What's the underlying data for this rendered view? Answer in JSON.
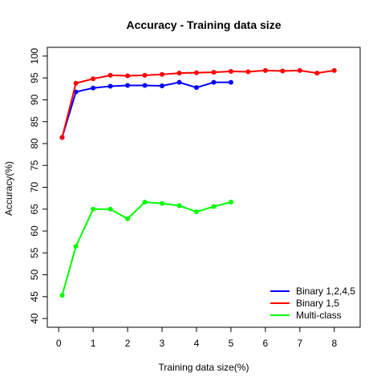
{
  "chart_data": {
    "type": "line",
    "title": "Accuracy - Training data size",
    "xlabel": "Training data size(%)",
    "ylabel": "Accuracy(%)",
    "xlim": [
      -0.33,
      8.75
    ],
    "ylim": [
      38,
      102
    ],
    "xticks": [
      0,
      1,
      2,
      3,
      4,
      5,
      6,
      7,
      8
    ],
    "yticks": [
      40,
      45,
      50,
      55,
      60,
      65,
      70,
      75,
      80,
      85,
      90,
      95,
      100
    ],
    "grid": false,
    "legend_position": "bottom-right",
    "series": [
      {
        "name": "Binary 1,2,4,5",
        "color": "#0000ff",
        "x": [
          0.1,
          0.5,
          1,
          1.5,
          2,
          2.5,
          3,
          3.5,
          4,
          4.5,
          5
        ],
        "y": [
          81.4,
          91.8,
          92.7,
          93.1,
          93.3,
          93.3,
          93.2,
          94.0,
          92.8,
          94.0,
          94.0
        ]
      },
      {
        "name": "Binary 1,5",
        "color": "#ff0000",
        "x": [
          0.1,
          0.5,
          1,
          1.5,
          2,
          2.5,
          3,
          3.5,
          4,
          4.5,
          5,
          5.5,
          6,
          6.5,
          7,
          7.5,
          8
        ],
        "y": [
          81.4,
          93.8,
          94.8,
          95.6,
          95.5,
          95.6,
          95.8,
          96.1,
          96.2,
          96.3,
          96.5,
          96.4,
          96.7,
          96.6,
          96.7,
          96.1,
          96.7
        ]
      },
      {
        "name": "Multi-class",
        "color": "#00ff00",
        "x": [
          0.1,
          0.5,
          1,
          1.5,
          2,
          2.5,
          3,
          3.5,
          4,
          4.5,
          5
        ],
        "y": [
          45.3,
          56.5,
          65.0,
          65.0,
          62.8,
          66.6,
          66.3,
          65.8,
          64.4,
          65.6,
          66.6
        ]
      }
    ]
  }
}
